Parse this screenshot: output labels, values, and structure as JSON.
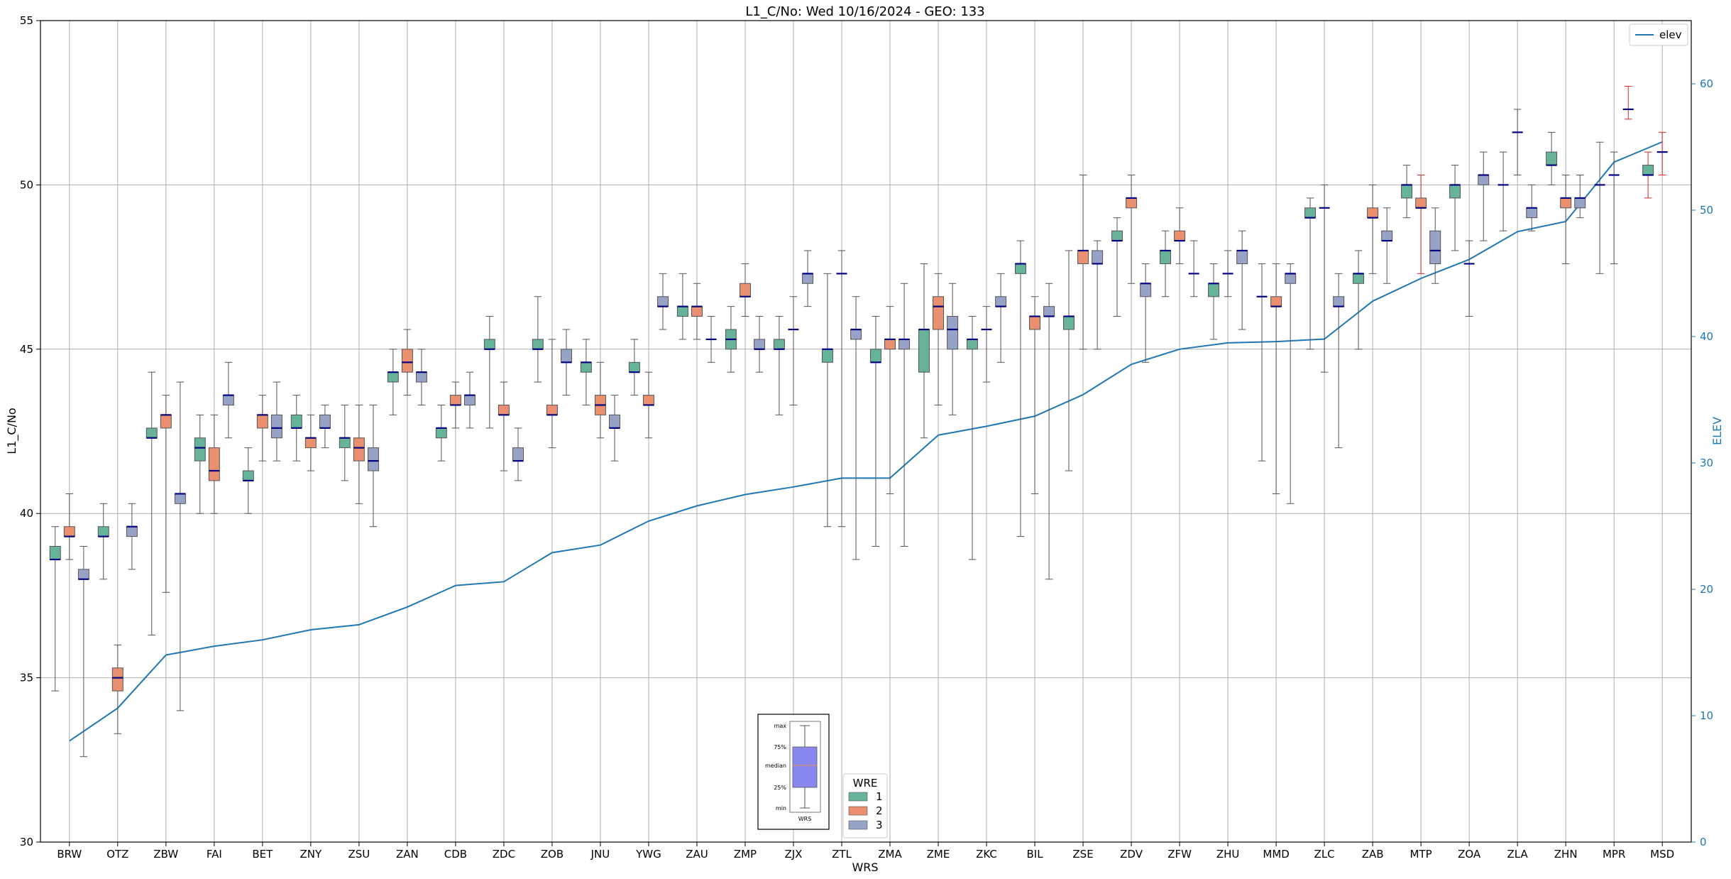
{
  "chart_data": {
    "type": "box",
    "title": "L1_C/No: Wed 10/16/2024 - GEO: 133",
    "xlabel": "WRS",
    "ylabel": "L1_C/No",
    "ylabel_right": "ELEV",
    "ylim": [
      30,
      55
    ],
    "ylim_right": [
      0,
      65
    ],
    "yticks": [
      30,
      35,
      40,
      45,
      50,
      55
    ],
    "yticks_right": [
      0,
      10,
      20,
      30,
      40,
      50,
      60
    ],
    "grid": true,
    "categories": [
      "BRW",
      "OTZ",
      "ZBW",
      "FAI",
      "BET",
      "ZNY",
      "ZSU",
      "ZAN",
      "CDB",
      "ZDC",
      "ZOB",
      "JNU",
      "YWG",
      "ZAU",
      "ZMP",
      "ZJX",
      "ZTL",
      "ZMA",
      "ZME",
      "ZKC",
      "BIL",
      "ZSE",
      "ZDV",
      "ZFW",
      "ZHU",
      "MMD",
      "ZLC",
      "ZAB",
      "MTP",
      "ZOA",
      "ZLA",
      "ZHN",
      "MPR",
      "MSD"
    ],
    "wre_legend": {
      "title": "WRE",
      "entries": [
        {
          "name": "1",
          "color": "#66b39a"
        },
        {
          "name": "2",
          "color": "#ea9070"
        },
        {
          "name": "3",
          "color": "#96a3c7"
        }
      ]
    },
    "elev_legend": {
      "name": "elev",
      "color": "#1f77b4"
    },
    "elevation": [
      8,
      10.6,
      14.8,
      15.5,
      16,
      16.8,
      17.2,
      18.6,
      20.3,
      20.6,
      22.9,
      23.5,
      25.4,
      26.6,
      27.5,
      28.1,
      28.8,
      28.8,
      32.2,
      32.9,
      33.7,
      35.4,
      37.8,
      39,
      39.5,
      39.6,
      39.8,
      42.8,
      44.6,
      46.1,
      48.3,
      49.1,
      53.8,
      55.4
    ],
    "boxes": [
      {
        "cat": "BRW",
        "wre": 1,
        "min": 34.6,
        "q1": 38.6,
        "median": 38.6,
        "q3": 39,
        "max": 39.6
      },
      {
        "cat": "BRW",
        "wre": 2,
        "min": 38.6,
        "q1": 39.3,
        "median": 39.3,
        "q3": 39.6,
        "max": 40.6
      },
      {
        "cat": "BRW",
        "wre": 3,
        "min": 32.6,
        "q1": 38,
        "median": 38,
        "q3": 38.3,
        "max": 39
      },
      {
        "cat": "OTZ",
        "wre": 1,
        "min": 38,
        "q1": 39.3,
        "median": 39.3,
        "q3": 39.6,
        "max": 40.3
      },
      {
        "cat": "OTZ",
        "wre": 2,
        "min": 33.3,
        "q1": 34.6,
        "median": 35,
        "q3": 35.3,
        "max": 36
      },
      {
        "cat": "OTZ",
        "wre": 3,
        "min": 38.3,
        "q1": 39.3,
        "median": 39.6,
        "q3": 39.6,
        "max": 40.3
      },
      {
        "cat": "ZBW",
        "wre": 1,
        "min": 36.3,
        "q1": 42.3,
        "median": 42.3,
        "q3": 42.6,
        "max": 44.3
      },
      {
        "cat": "ZBW",
        "wre": 2,
        "min": 37.6,
        "q1": 42.6,
        "median": 43,
        "q3": 43,
        "max": 43.6
      },
      {
        "cat": "ZBW",
        "wre": 3,
        "min": 34,
        "q1": 40.3,
        "median": 40.6,
        "q3": 40.6,
        "max": 44
      },
      {
        "cat": "FAI",
        "wre": 1,
        "min": 40,
        "q1": 41.6,
        "median": 42,
        "q3": 42.3,
        "max": 43
      },
      {
        "cat": "FAI",
        "wre": 2,
        "min": 40,
        "q1": 41,
        "median": 41.3,
        "q3": 42,
        "max": 43
      },
      {
        "cat": "FAI",
        "wre": 3,
        "min": 42.3,
        "q1": 43.3,
        "median": 43.6,
        "q3": 43.6,
        "max": 44.6
      },
      {
        "cat": "BET",
        "wre": 1,
        "min": 40,
        "q1": 41,
        "median": 41,
        "q3": 41.3,
        "max": 42
      },
      {
        "cat": "BET",
        "wre": 2,
        "min": 41.6,
        "q1": 42.6,
        "median": 43,
        "q3": 43,
        "max": 43.6
      },
      {
        "cat": "BET",
        "wre": 3,
        "min": 41.6,
        "q1": 42.3,
        "median": 42.6,
        "q3": 43,
        "max": 44
      },
      {
        "cat": "ZNY",
        "wre": 1,
        "min": 41.6,
        "q1": 42.6,
        "median": 42.6,
        "q3": 43,
        "max": 43.6
      },
      {
        "cat": "ZNY",
        "wre": 2,
        "min": 41.3,
        "q1": 42,
        "median": 42.3,
        "q3": 42.3,
        "max": 43
      },
      {
        "cat": "ZNY",
        "wre": 3,
        "min": 42,
        "q1": 42.6,
        "median": 42.6,
        "q3": 43,
        "max": 43.3
      },
      {
        "cat": "ZSU",
        "wre": 1,
        "min": 41,
        "q1": 42,
        "median": 42.3,
        "q3": 42.3,
        "max": 43.3
      },
      {
        "cat": "ZSU",
        "wre": 2,
        "min": 40.3,
        "q1": 41.6,
        "median": 42,
        "q3": 42.3,
        "max": 43.3
      },
      {
        "cat": "ZSU",
        "wre": 3,
        "min": 39.6,
        "q1": 41.3,
        "median": 41.6,
        "q3": 42,
        "max": 43.3
      },
      {
        "cat": "ZAN",
        "wre": 1,
        "min": 43,
        "q1": 44,
        "median": 44.3,
        "q3": 44.3,
        "max": 45
      },
      {
        "cat": "ZAN",
        "wre": 2,
        "min": 43.6,
        "q1": 44.3,
        "median": 44.6,
        "q3": 45,
        "max": 45.6
      },
      {
        "cat": "ZAN",
        "wre": 3,
        "min": 43.3,
        "q1": 44,
        "median": 44.3,
        "q3": 44.3,
        "max": 45
      },
      {
        "cat": "CDB",
        "wre": 1,
        "min": 41.6,
        "q1": 42.3,
        "median": 42.6,
        "q3": 42.6,
        "max": 43.3
      },
      {
        "cat": "CDB",
        "wre": 2,
        "min": 42.6,
        "q1": 43.3,
        "median": 43.3,
        "q3": 43.6,
        "max": 44
      },
      {
        "cat": "CDB",
        "wre": 3,
        "min": 42.6,
        "q1": 43.3,
        "median": 43.6,
        "q3": 43.6,
        "max": 44.3
      },
      {
        "cat": "ZDC",
        "wre": 1,
        "min": 42.6,
        "q1": 45,
        "median": 45,
        "q3": 45.3,
        "max": 46
      },
      {
        "cat": "ZDC",
        "wre": 2,
        "min": 41.3,
        "q1": 43,
        "median": 43,
        "q3": 43.3,
        "max": 44
      },
      {
        "cat": "ZDC",
        "wre": 3,
        "min": 41,
        "q1": 41.6,
        "median": 41.6,
        "q3": 42,
        "max": 42.6
      },
      {
        "cat": "ZOB",
        "wre": 1,
        "min": 44,
        "q1": 45,
        "median": 45,
        "q3": 45.3,
        "max": 46.6
      },
      {
        "cat": "ZOB",
        "wre": 2,
        "min": 42,
        "q1": 43,
        "median": 43,
        "q3": 43.3,
        "max": 45.3
      },
      {
        "cat": "ZOB",
        "wre": 3,
        "min": 43.6,
        "q1": 44.6,
        "median": 44.6,
        "q3": 45,
        "max": 45.6
      },
      {
        "cat": "JNU",
        "wre": 1,
        "min": 43.3,
        "q1": 44.3,
        "median": 44.6,
        "q3": 44.6,
        "max": 45.3
      },
      {
        "cat": "JNU",
        "wre": 2,
        "min": 42.3,
        "q1": 43,
        "median": 43.3,
        "q3": 43.6,
        "max": 44.6
      },
      {
        "cat": "JNU",
        "wre": 3,
        "min": 41.6,
        "q1": 42.6,
        "median": 42.6,
        "q3": 43,
        "max": 43.6
      },
      {
        "cat": "YWG",
        "wre": 1,
        "min": 43.6,
        "q1": 44.3,
        "median": 44.3,
        "q3": 44.6,
        "max": 45.3
      },
      {
        "cat": "YWG",
        "wre": 2,
        "min": 42.3,
        "q1": 43.3,
        "median": 43.3,
        "q3": 43.6,
        "max": 44.3
      },
      {
        "cat": "YWG",
        "wre": 3,
        "min": 45.6,
        "q1": 46.3,
        "median": 46.3,
        "q3": 46.6,
        "max": 47.3
      },
      {
        "cat": "ZAU",
        "wre": 1,
        "min": 45.3,
        "q1": 46,
        "median": 46.3,
        "q3": 46.3,
        "max": 47.3
      },
      {
        "cat": "ZAU",
        "wre": 2,
        "min": 45.3,
        "q1": 46,
        "median": 46.3,
        "q3": 46.3,
        "max": 47
      },
      {
        "cat": "ZAU",
        "wre": 3,
        "min": 44.6,
        "q1": 45.3,
        "median": 45.3,
        "q3": 45.3,
        "max": 46
      },
      {
        "cat": "ZMP",
        "wre": 1,
        "min": 44.3,
        "q1": 45,
        "median": 45.3,
        "q3": 45.6,
        "max": 46.3
      },
      {
        "cat": "ZMP",
        "wre": 2,
        "min": 46,
        "q1": 46.6,
        "median": 46.6,
        "q3": 47,
        "max": 47.6
      },
      {
        "cat": "ZMP",
        "wre": 3,
        "min": 44.3,
        "q1": 45,
        "median": 45,
        "q3": 45.3,
        "max": 46
      },
      {
        "cat": "ZJX",
        "wre": 1,
        "min": 43,
        "q1": 45,
        "median": 45,
        "q3": 45.3,
        "max": 46
      },
      {
        "cat": "ZJX",
        "wre": 2,
        "min": 43.3,
        "q1": 45.6,
        "median": 45.6,
        "q3": 45.6,
        "max": 46.6
      },
      {
        "cat": "ZJX",
        "wre": 3,
        "min": 46.3,
        "q1": 47,
        "median": 47.3,
        "q3": 47.3,
        "max": 48
      },
      {
        "cat": "ZTL",
        "wre": 1,
        "min": 39.6,
        "q1": 44.6,
        "median": 45,
        "q3": 45,
        "max": 47.3
      },
      {
        "cat": "ZTL",
        "wre": 2,
        "min": 39.6,
        "q1": 47.3,
        "median": 47.3,
        "q3": 47.3,
        "max": 48
      },
      {
        "cat": "ZTL",
        "wre": 3,
        "min": 38.6,
        "q1": 45.3,
        "median": 45.6,
        "q3": 45.6,
        "max": 46.6
      },
      {
        "cat": "ZMA",
        "wre": 1,
        "min": 39,
        "q1": 44.6,
        "median": 44.6,
        "q3": 45,
        "max": 46
      },
      {
        "cat": "ZMA",
        "wre": 2,
        "min": 40.6,
        "q1": 45,
        "median": 45.3,
        "q3": 45.3,
        "max": 46.3
      },
      {
        "cat": "ZMA",
        "wre": 3,
        "min": 39,
        "q1": 45,
        "median": 45.3,
        "q3": 45.3,
        "max": 47
      },
      {
        "cat": "ZME",
        "wre": 1,
        "min": 42.3,
        "q1": 44.3,
        "median": 45.6,
        "q3": 45.6,
        "max": 47.6
      },
      {
        "cat": "ZME",
        "wre": 2,
        "min": 43.3,
        "q1": 45.6,
        "median": 46.3,
        "q3": 46.6,
        "max": 47.3
      },
      {
        "cat": "ZME",
        "wre": 3,
        "min": 43,
        "q1": 45,
        "median": 45.6,
        "q3": 46,
        "max": 47
      },
      {
        "cat": "ZKC",
        "wre": 1,
        "min": 38.6,
        "q1": 45,
        "median": 45.3,
        "q3": 45.3,
        "max": 46
      },
      {
        "cat": "ZKC",
        "wre": 2,
        "min": 44,
        "q1": 45.6,
        "median": 45.6,
        "q3": 45.6,
        "max": 46.3
      },
      {
        "cat": "ZKC",
        "wre": 3,
        "min": 44.6,
        "q1": 46.3,
        "median": 46.3,
        "q3": 46.6,
        "max": 47.3
      },
      {
        "cat": "BIL",
        "wre": 1,
        "min": 39.3,
        "q1": 47.3,
        "median": 47.6,
        "q3": 47.6,
        "max": 48.3
      },
      {
        "cat": "BIL",
        "wre": 2,
        "min": 40.6,
        "q1": 45.6,
        "median": 46,
        "q3": 46,
        "max": 46.6
      },
      {
        "cat": "BIL",
        "wre": 3,
        "min": 38,
        "q1": 46,
        "median": 46,
        "q3": 46.3,
        "max": 47
      },
      {
        "cat": "ZSE",
        "wre": 1,
        "min": 41.3,
        "q1": 45.6,
        "median": 46,
        "q3": 46,
        "max": 48
      },
      {
        "cat": "ZSE",
        "wre": 2,
        "min": 45,
        "q1": 47.6,
        "median": 48,
        "q3": 48,
        "max": 50.3
      },
      {
        "cat": "ZSE",
        "wre": 3,
        "min": 45,
        "q1": 47.6,
        "median": 47.6,
        "q3": 48,
        "max": 48.3
      },
      {
        "cat": "ZDV",
        "wre": 1,
        "min": 46,
        "q1": 48.3,
        "median": 48.3,
        "q3": 48.6,
        "max": 49
      },
      {
        "cat": "ZDV",
        "wre": 2,
        "min": 47,
        "q1": 49.3,
        "median": 49.6,
        "q3": 49.6,
        "max": 50.3
      },
      {
        "cat": "ZDV",
        "wre": 3,
        "min": 44.6,
        "q1": 46.6,
        "median": 47,
        "q3": 47,
        "max": 47.6
      },
      {
        "cat": "ZFW",
        "wre": 1,
        "min": 46.6,
        "q1": 47.6,
        "median": 48,
        "q3": 48,
        "max": 48.6
      },
      {
        "cat": "ZFW",
        "wre": 2,
        "min": 47.6,
        "q1": 48.3,
        "median": 48.3,
        "q3": 48.6,
        "max": 49.3
      },
      {
        "cat": "ZFW",
        "wre": 3,
        "min": 46.6,
        "q1": 47.3,
        "median": 47.3,
        "q3": 47.3,
        "max": 48.3
      },
      {
        "cat": "ZHU",
        "wre": 1,
        "min": 45.3,
        "q1": 46.6,
        "median": 47,
        "q3": 47,
        "max": 47.6
      },
      {
        "cat": "ZHU",
        "wre": 2,
        "min": 46.6,
        "q1": 47.3,
        "median": 47.3,
        "q3": 47.3,
        "max": 48
      },
      {
        "cat": "ZHU",
        "wre": 3,
        "min": 45.6,
        "q1": 47.6,
        "median": 48,
        "q3": 48,
        "max": 48.6
      },
      {
        "cat": "MMD",
        "wre": 1,
        "min": 41.6,
        "q1": 46.6,
        "median": 46.6,
        "q3": 46.6,
        "max": 47.6
      },
      {
        "cat": "MMD",
        "wre": 2,
        "min": 40.6,
        "q1": 46.3,
        "median": 46.3,
        "q3": 46.6,
        "max": 47.6
      },
      {
        "cat": "MMD",
        "wre": 3,
        "min": 40.3,
        "q1": 47,
        "median": 47.3,
        "q3": 47.3,
        "max": 47.6
      },
      {
        "cat": "ZLC",
        "wre": 1,
        "min": 45,
        "q1": 49,
        "median": 49,
        "q3": 49.3,
        "max": 49.6
      },
      {
        "cat": "ZLC",
        "wre": 2,
        "min": 44.3,
        "q1": 49.3,
        "median": 49.3,
        "q3": 49.3,
        "max": 50
      },
      {
        "cat": "ZLC",
        "wre": 3,
        "min": 42,
        "q1": 46.3,
        "median": 46.3,
        "q3": 46.6,
        "max": 47.3
      },
      {
        "cat": "ZAB",
        "wre": 1,
        "min": 45,
        "q1": 47,
        "median": 47.3,
        "q3": 47.3,
        "max": 48
      },
      {
        "cat": "ZAB",
        "wre": 2,
        "min": 47.3,
        "q1": 49,
        "median": 49,
        "q3": 49.3,
        "max": 50
      },
      {
        "cat": "ZAB",
        "wre": 3,
        "min": 47,
        "q1": 48.3,
        "median": 48.3,
        "q3": 48.6,
        "max": 49.3
      },
      {
        "cat": "MTP",
        "wre": 1,
        "min": 49,
        "q1": 49.6,
        "median": 50,
        "q3": 50,
        "max": 50.6
      },
      {
        "cat": "MTP",
        "wre": 2,
        "min": 47.3,
        "q1": 49.3,
        "median": 49.3,
        "q3": 49.6,
        "max": 50.3
      },
      {
        "cat": "MTP",
        "wre": 3,
        "min": 47,
        "q1": 47.6,
        "median": 48,
        "q3": 48.6,
        "max": 49.3
      },
      {
        "cat": "ZOA",
        "wre": 1,
        "min": 48,
        "q1": 49.6,
        "median": 50,
        "q3": 50,
        "max": 50.6
      },
      {
        "cat": "ZOA",
        "wre": 2,
        "min": 46,
        "q1": 47.6,
        "median": 47.6,
        "q3": 47.6,
        "max": 48.3
      },
      {
        "cat": "ZOA",
        "wre": 3,
        "min": 48.3,
        "q1": 50,
        "median": 50.3,
        "q3": 50.3,
        "max": 51
      },
      {
        "cat": "ZLA",
        "wre": 1,
        "min": 48.6,
        "q1": 50,
        "median": 50,
        "q3": 50,
        "max": 51
      },
      {
        "cat": "ZLA",
        "wre": 2,
        "min": 50.3,
        "q1": 51.6,
        "median": 51.6,
        "q3": 51.6,
        "max": 52.3
      },
      {
        "cat": "ZLA",
        "wre": 3,
        "min": 48.6,
        "q1": 49,
        "median": 49.3,
        "q3": 49.3,
        "max": 50
      },
      {
        "cat": "ZHN",
        "wre": 1,
        "min": 50,
        "q1": 50.6,
        "median": 50.6,
        "q3": 51,
        "max": 51.6
      },
      {
        "cat": "ZHN",
        "wre": 2,
        "min": 47.6,
        "q1": 49.3,
        "median": 49.6,
        "q3": 49.6,
        "max": 50.3
      },
      {
        "cat": "ZHN",
        "wre": 3,
        "min": 49,
        "q1": 49.3,
        "median": 49.6,
        "q3": 49.6,
        "max": 50.3
      },
      {
        "cat": "MPR",
        "wre": 1,
        "min": 47.3,
        "q1": 50,
        "median": 50,
        "q3": 50,
        "max": 51.3
      },
      {
        "cat": "MPR",
        "wre": 2,
        "min": 47.6,
        "q1": 50.3,
        "median": 50.3,
        "q3": 50.3,
        "max": 51
      },
      {
        "cat": "MPR",
        "wre": 3,
        "min": 52,
        "q1": 52.3,
        "median": 52.3,
        "q3": 52.3,
        "max": 53
      },
      {
        "cat": "MSD",
        "wre": 1,
        "min": 49.6,
        "q1": 50.3,
        "median": 50.3,
        "q3": 50.6,
        "max": 51
      },
      {
        "cat": "MSD",
        "wre": 2,
        "min": 50.3,
        "q1": 51,
        "median": 51,
        "q3": 51,
        "max": 51.6
      }
    ],
    "inset": {
      "labels": [
        "max",
        "75%",
        "median",
        "25%",
        "min"
      ],
      "xlabel": "WRS"
    }
  }
}
